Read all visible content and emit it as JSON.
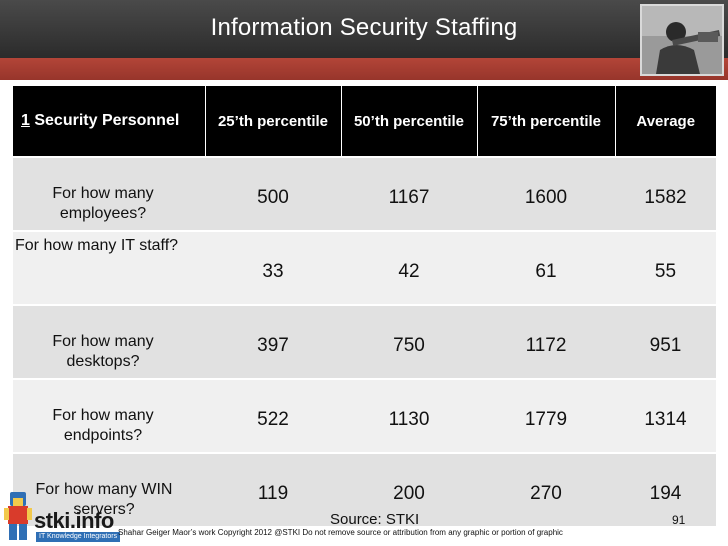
{
  "title": "Information Security Staffing",
  "table": {
    "header_number": "1",
    "header_label": " Security Personnel",
    "columns": [
      "25’th percentile",
      "50’th percentile",
      "75’th percentile",
      "Average"
    ],
    "rows": [
      {
        "label": "For how many employees?",
        "values": [
          "500",
          "1167",
          "1600",
          "1582"
        ]
      },
      {
        "label": "For how many IT staff?",
        "values": [
          "33",
          "42",
          "61",
          "55"
        ]
      },
      {
        "label": "For how many desktops?",
        "values": [
          "397",
          "750",
          "1172",
          "951"
        ]
      },
      {
        "label": "For how many endpoints?",
        "values": [
          "522",
          "1130",
          "1779",
          "1314"
        ]
      },
      {
        "label": "For how many  WIN servers?",
        "values": [
          "119",
          "200",
          "270",
          "194"
        ]
      }
    ]
  },
  "footer": {
    "logo_text": "stki.info",
    "logo_sub": "IT Knowledge Integrators",
    "source": "Source: STKI",
    "copyright": "Shahar Geiger Maor’s work  Copyright  2012 @STKI    Do not remove source or attribution from any graphic or portion of graphic",
    "page_number": "91"
  },
  "colors": {
    "title_bar": "#333333",
    "accent_band": "#a63f33",
    "header_bg": "#000000",
    "row_bg": "#e1e1e1",
    "row_alt_bg": "#f0f0f0"
  }
}
